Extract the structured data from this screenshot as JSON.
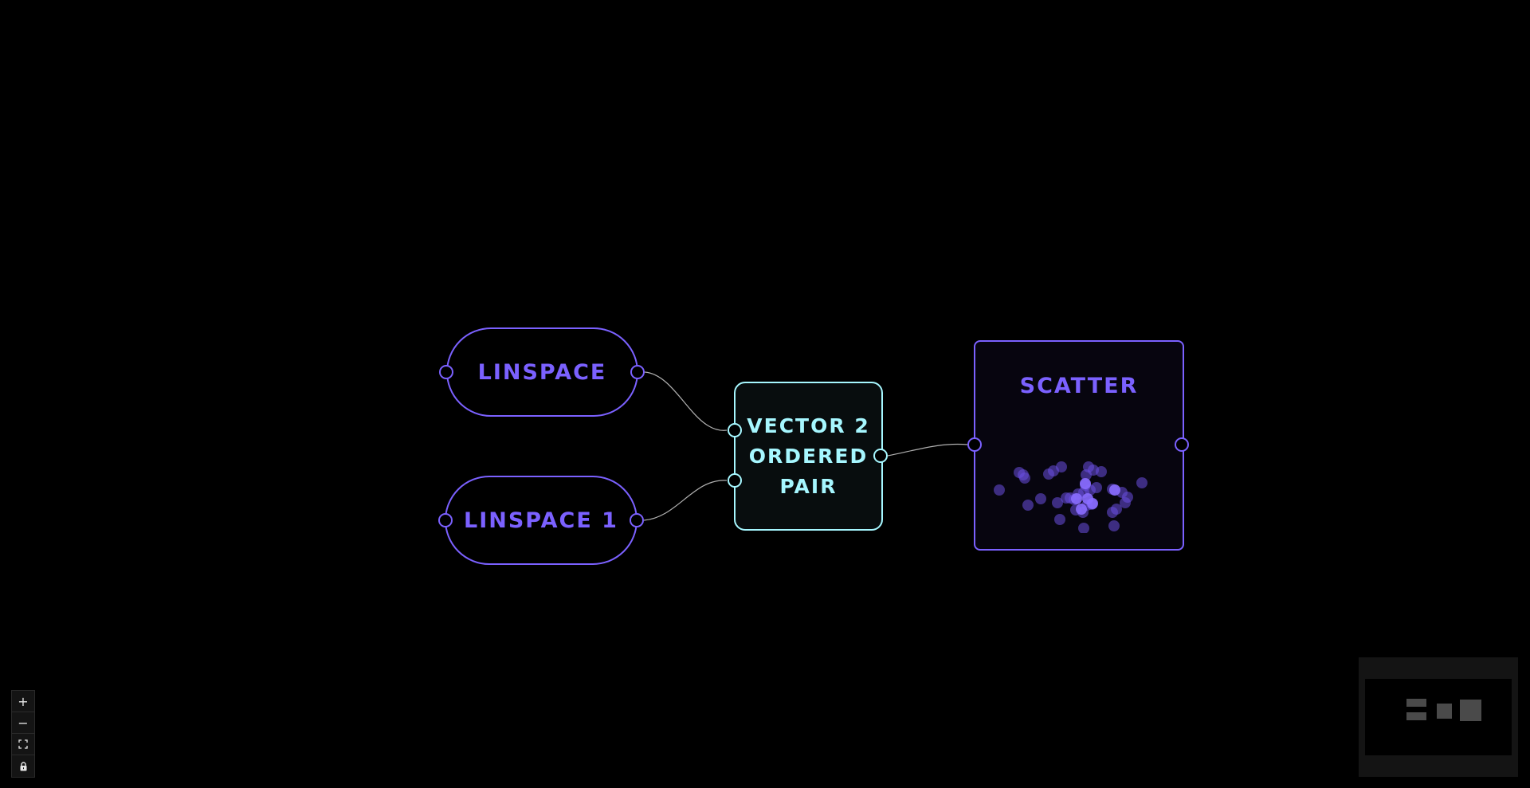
{
  "flow": {
    "nodes": {
      "linspace": {
        "label": "LINSPACE",
        "color": "#7b61ff"
      },
      "linspace1": {
        "label": "LINSPACE 1",
        "color": "#7b61ff"
      },
      "vector2": {
        "lines": [
          "VECTOR 2",
          "ORDERED",
          "PAIR"
        ],
        "color": "#a6f7ff"
      },
      "scatter": {
        "label": "SCATTER",
        "color": "#7b61ff"
      }
    },
    "edges": [
      {
        "from": "linspace",
        "to": "vector2-in-1"
      },
      {
        "from": "linspace1",
        "to": "vector2-in-2"
      },
      {
        "from": "vector2",
        "to": "scatter"
      }
    ]
  },
  "controls": {
    "zoom_in_icon": "+",
    "zoom_out_icon": "−",
    "fit_view_icon": "⛶",
    "lock_icon": "🔒"
  },
  "colors": {
    "background": "#000000",
    "accent_purple": "#7b61ff",
    "accent_cyan": "#a6f7ff",
    "edge": "#b0b0b0"
  }
}
